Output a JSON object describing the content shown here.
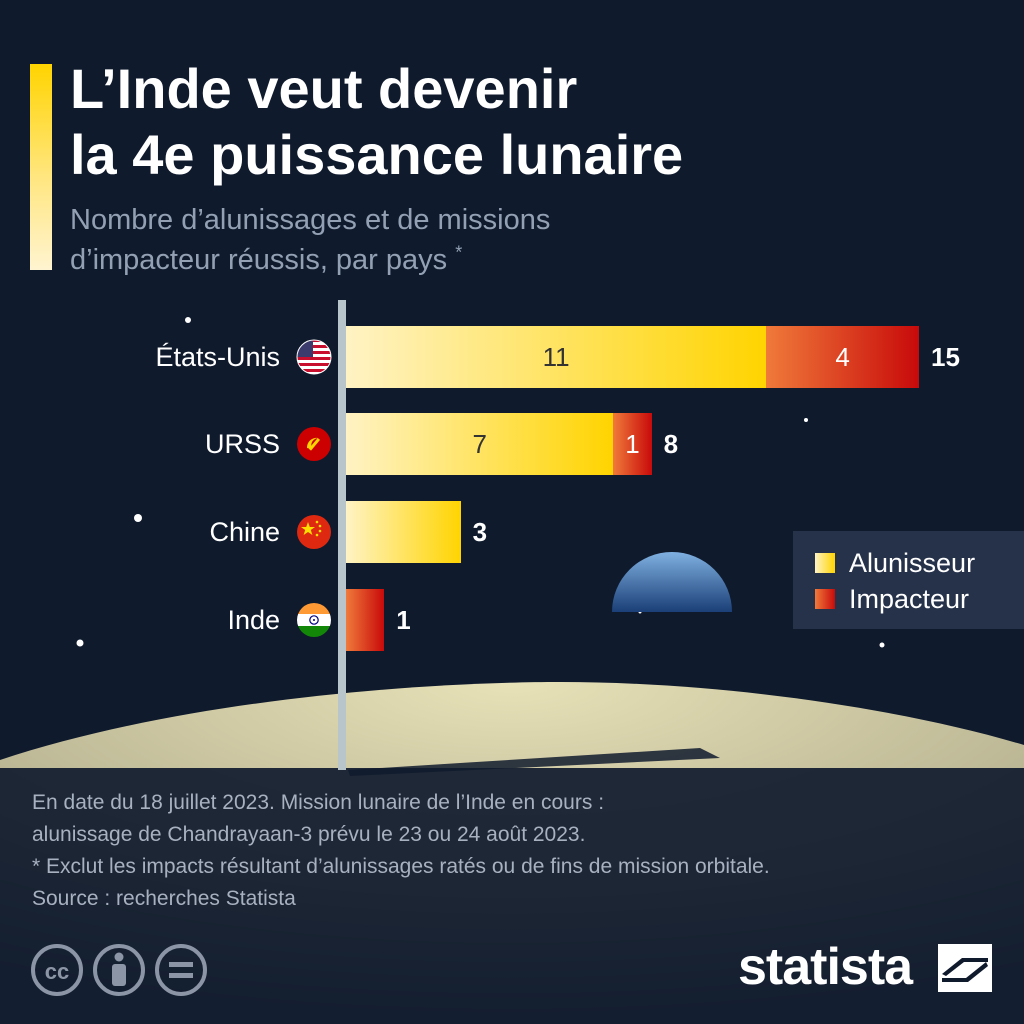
{
  "header": {
    "title_line1": "L’Inde veut devenir",
    "title_line2": "la 4e puissance lunaire",
    "subtitle_line1": "Nombre d’alunissages et de missions",
    "subtitle_line2": "d’impacteur réussis, par pays",
    "subtitle_mark": "*"
  },
  "chart_data": {
    "type": "bar",
    "orientation": "horizontal",
    "stacked": true,
    "categories": [
      "États-Unis",
      "URSS",
      "Chine",
      "Inde"
    ],
    "series": [
      {
        "name": "Alunisseur",
        "values": [
          11,
          7,
          3,
          0
        ]
      },
      {
        "name": "Impacteur",
        "values": [
          4,
          1,
          0,
          1
        ]
      }
    ],
    "totals": [
      15,
      8,
      3,
      1
    ],
    "xlim": [
      0,
      15
    ],
    "grid": false,
    "legend_position": "right",
    "colors": {
      "alunisseur_start": "#fff3c4",
      "alunisseur_end": "#ffd400",
      "impacteur_start": "#f07a3a",
      "impacteur_end": "#c80a0a"
    }
  },
  "flags": [
    "us-flag-icon",
    "ussr-flag-icon",
    "china-flag-icon",
    "india-flag-icon"
  ],
  "footnotes": {
    "line1": "En date du 18 juillet 2023. Mission lunaire de l’Inde en cours :",
    "line2": "alunissage de Chandrayaan-3 prévu le 23 ou 24 août 2023.",
    "line3": "* Exclut les impacts résultant d’alunissages ratés ou de fins de mission orbitale.",
    "source": "Source : recherches Statista"
  },
  "brand": {
    "name": "statista"
  },
  "colors": {
    "background": "#0f1a2d",
    "accent": "#ffd400",
    "legend_bg": "#26324a"
  }
}
